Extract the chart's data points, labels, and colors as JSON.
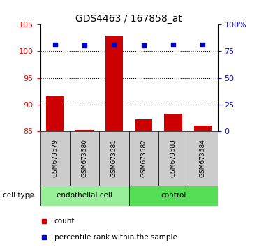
{
  "title": "GDS4463 / 167858_at",
  "samples": [
    "GSM673579",
    "GSM673580",
    "GSM673581",
    "GSM673582",
    "GSM673583",
    "GSM673584"
  ],
  "bar_values": [
    91.5,
    85.2,
    103.0,
    87.2,
    88.2,
    86.0
  ],
  "bar_bottom": [
    85.0,
    85.0,
    85.0,
    85.0,
    85.0,
    85.0
  ],
  "percentile_values": [
    101.3,
    101.1,
    101.3,
    101.1,
    101.2,
    101.2
  ],
  "bar_color": "#cc0000",
  "percentile_color": "#0000cc",
  "left_ylim": [
    85,
    105
  ],
  "left_yticks": [
    85,
    90,
    95,
    100,
    105
  ],
  "right_ylim": [
    0,
    100
  ],
  "right_yticks": [
    0,
    25,
    50,
    75,
    100
  ],
  "right_yticklabels": [
    "0",
    "25",
    "50",
    "75",
    "100%"
  ],
  "group1_label": "endothelial cell",
  "group2_label": "control",
  "group1_indices": [
    0,
    1,
    2
  ],
  "group2_indices": [
    3,
    4,
    5
  ],
  "group1_color": "#99ee99",
  "group2_color": "#55dd55",
  "cell_type_label": "cell type",
  "bar_width": 0.6,
  "grid_values": [
    90,
    95,
    100
  ],
  "bg_color": "#ffffff",
  "sample_box_color": "#cccccc",
  "legend_count_label": "count",
  "legend_pct_label": "percentile rank within the sample",
  "legend_marker_size": 5
}
